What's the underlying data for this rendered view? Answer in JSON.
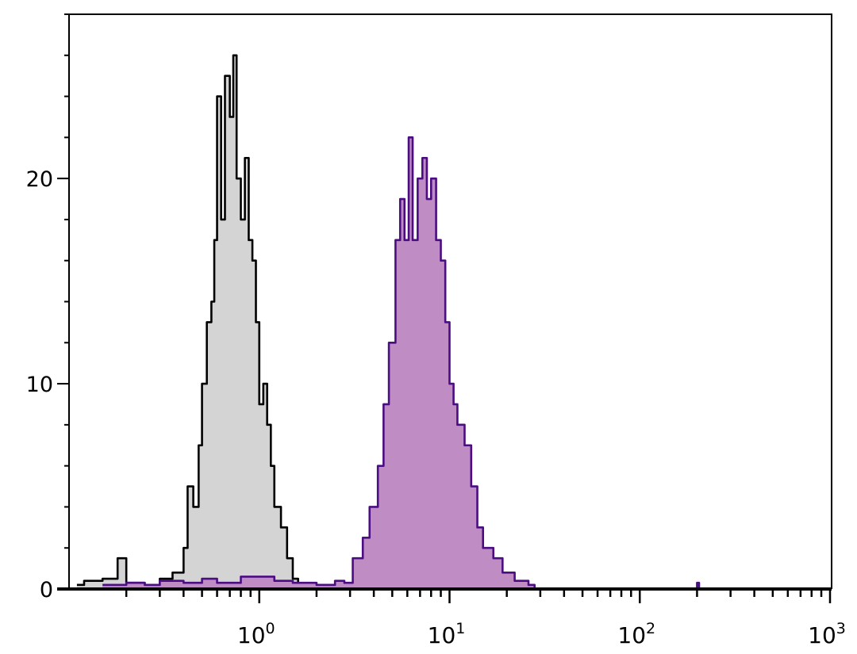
{
  "chart_data": {
    "type": "area",
    "title": "",
    "xlabel": "",
    "ylabel": "",
    "xscale": "log",
    "xlim": [
      0.1,
      1000
    ],
    "ylim": [
      0,
      28
    ],
    "grid": false,
    "legend": "none",
    "x_ticks": [
      {
        "value": 1,
        "base": "10",
        "exp": "0"
      },
      {
        "value": 10,
        "base": "10",
        "exp": "1"
      },
      {
        "value": 100,
        "base": "10",
        "exp": "2"
      },
      {
        "value": 1000,
        "base": "10",
        "exp": "3"
      }
    ],
    "y_ticks": [
      {
        "value": 0,
        "label": "0"
      },
      {
        "value": 10,
        "label": "10"
      },
      {
        "value": 20,
        "label": "20"
      }
    ],
    "series": [
      {
        "color": "#000000",
        "fill": "#d4d4d4",
        "x": [
          0.11,
          0.12,
          0.15,
          0.18,
          0.2,
          0.25,
          0.3,
          0.35,
          0.4,
          0.42,
          0.45,
          0.48,
          0.5,
          0.53,
          0.56,
          0.58,
          0.6,
          0.63,
          0.66,
          0.7,
          0.73,
          0.76,
          0.8,
          0.84,
          0.88,
          0.92,
          0.96,
          1.0,
          1.05,
          1.1,
          1.15,
          1.2,
          1.3,
          1.4,
          1.5,
          1.6,
          1.7
        ],
        "y": [
          0.2,
          0.4,
          0.5,
          1.5,
          0.3,
          0.2,
          0.5,
          0.8,
          2,
          5,
          4,
          7,
          10,
          13,
          14,
          17,
          24,
          18,
          25,
          23,
          26,
          20,
          18,
          21,
          17,
          16,
          13,
          9,
          10,
          8,
          6,
          4,
          3,
          1.5,
          0.5,
          0.1,
          0
        ]
      },
      {
        "color": "#4b0e82",
        "fill": "#c08cc4",
        "x": [
          0.15,
          0.2,
          0.25,
          0.3,
          0.4,
          0.5,
          0.6,
          0.8,
          1.2,
          1.5,
          2.0,
          2.5,
          2.8,
          3.1,
          3.5,
          3.8,
          4.2,
          4.5,
          4.8,
          5.2,
          5.5,
          5.8,
          6.1,
          6.4,
          6.8,
          7.2,
          7.6,
          8.0,
          8.5,
          9.0,
          9.5,
          10,
          10.5,
          11,
          12,
          13,
          14,
          15,
          17,
          19,
          22,
          26,
          28,
          200,
          205
        ],
        "y": [
          0.2,
          0.3,
          0.2,
          0.4,
          0.3,
          0.5,
          0.3,
          0.6,
          0.4,
          0.3,
          0.2,
          0.4,
          0.3,
          1.5,
          2.5,
          4,
          6,
          9,
          12,
          17,
          19,
          17,
          22,
          17,
          20,
          21,
          19,
          20,
          17,
          16,
          13,
          10,
          9,
          8,
          7,
          5,
          3,
          2,
          1.5,
          0.8,
          0.4,
          0.2,
          0,
          0.3,
          0
        ]
      }
    ]
  }
}
